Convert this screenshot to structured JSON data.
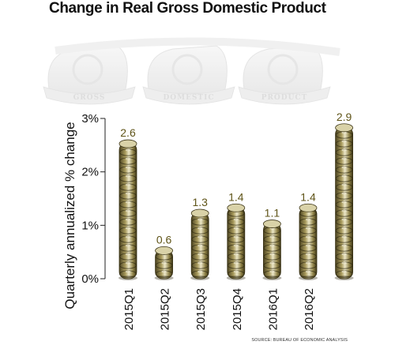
{
  "chart_data": {
    "type": "bar",
    "title": "Change in Real Gross Domestic Product",
    "ylabel": "Quarterly annualized % change",
    "xlabel": "",
    "categories": [
      "2015Q1",
      "2015Q2",
      "2015Q3",
      "2015Q4",
      "2016Q1",
      "2016Q2",
      ""
    ],
    "values": [
      2.6,
      0.6,
      1.3,
      1.4,
      1.1,
      1.4,
      2.9
    ],
    "value_labels": [
      "2.6",
      "0.6",
      "1.3",
      "1.4",
      "1.1",
      "1.4",
      "2.9"
    ],
    "ylim": [
      0,
      3
    ],
    "yticks": [
      0,
      1,
      2,
      3
    ],
    "ytick_labels": [
      "0%",
      "1%",
      "2%",
      "3%"
    ],
    "grid": false,
    "decorative_banner_words": [
      "GROSS",
      "DOMESTIC",
      "PRODUCT"
    ],
    "source": "SOURCE: BUREAU OF ECONOMIC ANALYSIS",
    "colors": {
      "bar_light": "#e8e2c0",
      "bar_mid": "#8a7d42",
      "bar_dark": "#3d3618",
      "value_label": "#5f5418",
      "axis": "#222222",
      "watermark": "#eeeeee"
    }
  }
}
